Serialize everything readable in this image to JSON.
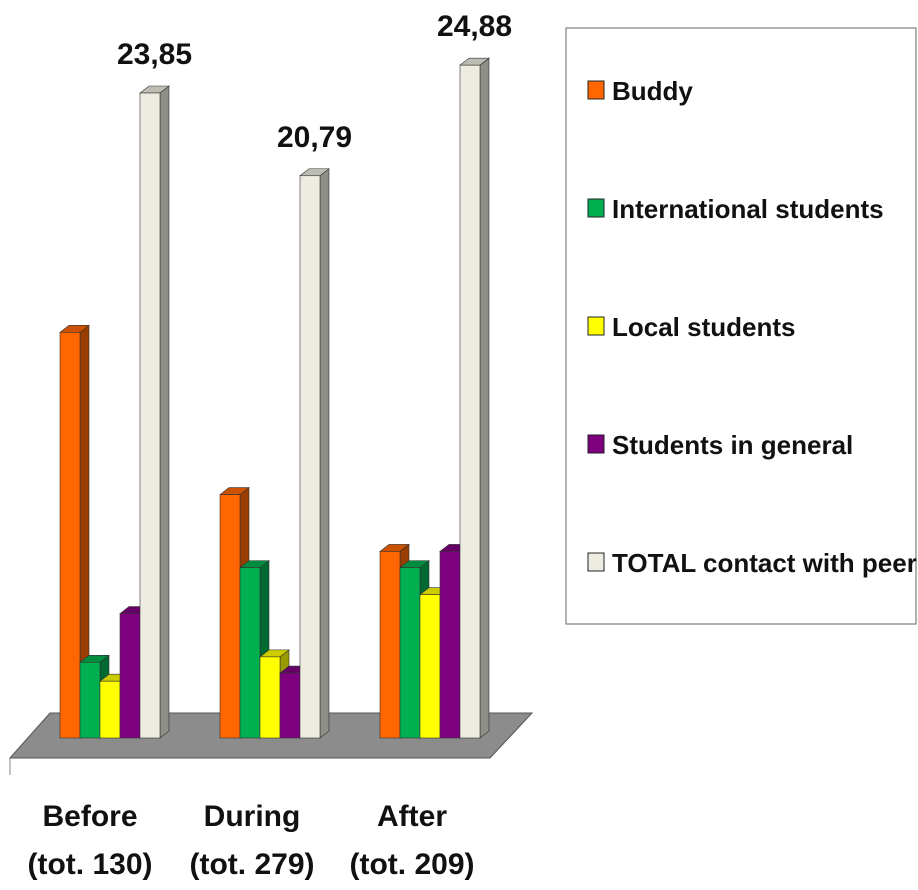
{
  "chart_data": {
    "type": "bar",
    "categories": [
      "Before\n(tot. 130)",
      "During\n(tot. 279)",
      "After\n(tot. 209)"
    ],
    "category_lines": [
      [
        "Before",
        "(tot. 130)"
      ],
      [
        "During",
        "(tot. 279)"
      ],
      [
        "After",
        "(tot. 209)"
      ]
    ],
    "series": [
      {
        "name": "Buddy",
        "values": [
          15.0,
          9.0,
          6.9
        ],
        "color": "#ff6600"
      },
      {
        "name": "International students",
        "values": [
          2.8,
          6.3,
          6.3
        ],
        "color": "#00b050"
      },
      {
        "name": "Local students",
        "values": [
          2.1,
          3.0,
          5.3
        ],
        "color": "#ffff00"
      },
      {
        "name": "Students in general",
        "values": [
          4.6,
          2.4,
          6.9
        ],
        "color": "#7f007f"
      },
      {
        "name": "TOTAL contact with peers",
        "values": [
          23.85,
          20.79,
          24.88
        ],
        "color": "#eeece1"
      }
    ],
    "data_labels": {
      "series": "TOTAL contact with peers",
      "labels": [
        "23,85",
        "20,79",
        "24,88"
      ]
    },
    "ylim": [
      0,
      25
    ],
    "grid": false,
    "legend_position": "right",
    "style": "3d-bar"
  }
}
